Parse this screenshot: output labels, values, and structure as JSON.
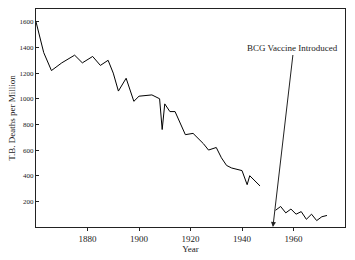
{
  "chart_data": {
    "type": "line",
    "x_label": "Year",
    "y_label": "T.B. Deaths per Million",
    "x": [
      1860,
      1863,
      1866,
      1870,
      1875,
      1878,
      1882,
      1885,
      1888,
      1890,
      1892,
      1895,
      1898,
      1900,
      1905,
      1908,
      1909,
      1910,
      1912,
      1914,
      1918,
      1921,
      1925,
      1927,
      1930,
      1932,
      1934,
      1936,
      1940,
      1942,
      1943,
      1945,
      1947,
      1950,
      1953,
      1955,
      1957,
      1959,
      1961,
      1963,
      1965,
      1967,
      1969,
      1971,
      1973
    ],
    "values": [
      1600,
      1360,
      1220,
      1280,
      1340,
      1280,
      1330,
      1260,
      1300,
      1200,
      1060,
      1160,
      980,
      1020,
      1030,
      1000,
      760,
      960,
      900,
      900,
      720,
      730,
      650,
      600,
      620,
      540,
      480,
      460,
      440,
      330,
      400,
      360,
      320,
      null,
      130,
      160,
      110,
      140,
      100,
      120,
      60,
      100,
      50,
      80,
      90
    ],
    "color": "#000000",
    "xlim": [
      1860,
      1980
    ],
    "xticks": [
      1880,
      1900,
      1920,
      1940,
      1960
    ],
    "ylim": [
      0,
      1700
    ],
    "yticks": [
      200,
      400,
      600,
      800,
      1000,
      1200,
      1400,
      1600
    ],
    "grid": false,
    "annotations": [
      {
        "text": "BCG Vaccine Introduced",
        "x": 1952,
        "y": 0
      }
    ]
  }
}
